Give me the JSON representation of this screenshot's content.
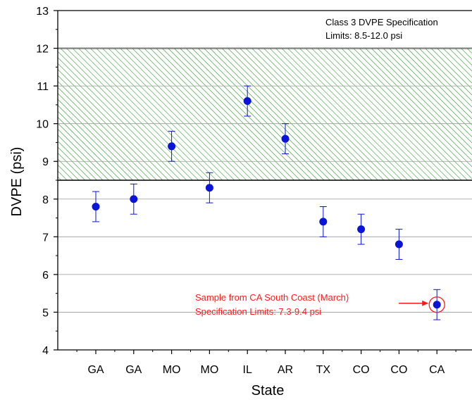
{
  "chart_data": {
    "type": "scatter",
    "xlabel": "State",
    "ylabel": "DVPE (psi)",
    "ylim": [
      4,
      13
    ],
    "yticks": [
      "4",
      "5",
      "6",
      "7",
      "8",
      "9",
      "10",
      "11",
      "12",
      "13"
    ],
    "grid": "horizontal",
    "categories": [
      "GA",
      "GA",
      "MO",
      "MO",
      "IL",
      "AR",
      "TX",
      "CO",
      "CO",
      "CA"
    ],
    "values": [
      7.8,
      8.0,
      9.4,
      8.3,
      10.6,
      9.6,
      7.4,
      7.2,
      6.8,
      5.2
    ],
    "error": [
      0.4,
      0.4,
      0.4,
      0.4,
      0.4,
      0.4,
      0.4,
      0.4,
      0.4,
      0.4
    ],
    "spec_band": {
      "low": 8.5,
      "high": 12.0,
      "label_line1": "Class 3 DVPE Specification",
      "label_line2": "Limits: 8.5-12.0 psi"
    },
    "highlight": {
      "index": 9,
      "label_line1": "Sample from CA South Coast (March)",
      "label_line2": "Specification Limits: 7.3-9.4 psi"
    },
    "colors": {
      "point": "#0a14d8",
      "band_hatch": "#1e8c1e",
      "highlight": "#ff1a1a",
      "grid": "#9a9a9a"
    }
  }
}
